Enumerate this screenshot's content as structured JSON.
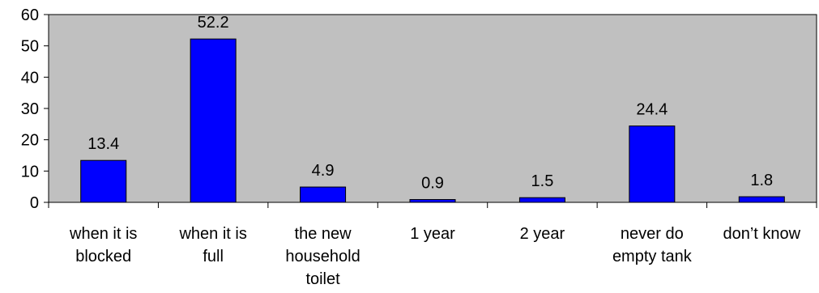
{
  "chart_data": {
    "type": "bar",
    "title": "",
    "xlabel": "",
    "ylabel": "",
    "ylim": [
      0,
      60
    ],
    "yticks": [
      0,
      10,
      20,
      30,
      40,
      50,
      60
    ],
    "grid": false,
    "legend": "none",
    "categories": [
      [
        "when it is",
        "blocked"
      ],
      [
        "when it is",
        "full"
      ],
      [
        "the new",
        "household",
        "toilet"
      ],
      [
        "1 year"
      ],
      [
        "2 year"
      ],
      [
        "never do",
        "empty tank"
      ],
      [
        "don’t know"
      ]
    ],
    "values": [
      13.4,
      52.2,
      4.9,
      0.9,
      1.5,
      24.4,
      1.8
    ],
    "value_labels": [
      "13.4",
      "52.2",
      "4.9",
      "0.9",
      "1.5",
      "24.4",
      "1.8"
    ],
    "colors": {
      "plot_background": "#c0c0c0",
      "bar_fill": "#0000ff",
      "bar_stroke": "#000000"
    }
  }
}
